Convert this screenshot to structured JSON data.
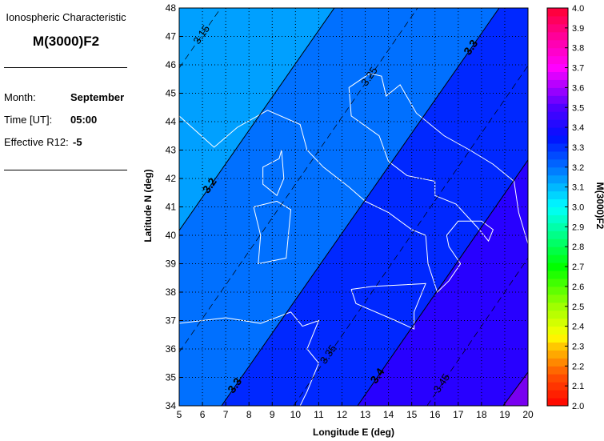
{
  "panel": {
    "subtitle": "Ionospheric Characteristic",
    "title": "M(3000)F2",
    "month_label": "Month:",
    "month_value": "September",
    "time_label": "Time [UT]:",
    "time_value": "05:00",
    "r12_label": "Effective R12:",
    "r12_value": "-5"
  },
  "chart_data": {
    "type": "contour",
    "xlabel": "Longitude E (deg)",
    "ylabel": "Latitude N (deg)",
    "xlim": [
      5,
      20
    ],
    "ylim": [
      34,
      48
    ],
    "xticks": [
      "5",
      "6",
      "7",
      "8",
      "9",
      "10",
      "11",
      "12",
      "13",
      "14",
      "15",
      "16",
      "17",
      "18",
      "19",
      "20"
    ],
    "yticks": [
      "34",
      "35",
      "36",
      "37",
      "38",
      "39",
      "40",
      "41",
      "42",
      "43",
      "44",
      "45",
      "46",
      "47",
      "48"
    ],
    "grid": true,
    "colorbar": {
      "label": "M(3000)F2",
      "range": [
        2.0,
        4.0
      ],
      "ticks": [
        "2.0",
        "2.1",
        "2.2",
        "2.3",
        "2.4",
        "2.5",
        "2.6",
        "2.7",
        "2.8",
        "2.9",
        "3.0",
        "3.1",
        "3.2",
        "3.3",
        "3.4",
        "3.5",
        "3.6",
        "3.7",
        "3.8",
        "3.9",
        "4.0"
      ]
    },
    "bands": [
      {
        "range": [
          3.1,
          3.2
        ],
        "color": "#00a0ff"
      },
      {
        "range": [
          3.2,
          3.3
        ],
        "color": "#0070ff"
      },
      {
        "range": [
          3.3,
          3.4
        ],
        "color": "#0028ff"
      },
      {
        "range": [
          3.4,
          3.5
        ],
        "color": "#2800ff"
      },
      {
        "range": [
          3.5,
          3.6
        ],
        "color": "#7800f0"
      }
    ],
    "contours": [
      {
        "level": "3.15",
        "style": "dashed",
        "points": [
          [
            5,
            45.89
          ],
          [
            6.79,
            48
          ]
        ]
      },
      {
        "level": "3.2",
        "style": "solid",
        "points": [
          [
            5,
            40.17
          ],
          [
            11.67,
            48
          ]
        ]
      },
      {
        "level": "3.25",
        "style": "dashed",
        "points": [
          [
            5,
            35.89
          ],
          [
            15.25,
            48
          ]
        ]
      },
      {
        "level": "3.3",
        "style": "solid",
        "points": [
          [
            6.82,
            34
          ],
          [
            18.76,
            48
          ]
        ]
      },
      {
        "level": "3.35",
        "style": "dashed",
        "points": [
          [
            9.92,
            34
          ],
          [
            20,
            45.97
          ]
        ]
      },
      {
        "level": "3.4",
        "style": "solid",
        "points": [
          [
            12.67,
            34
          ],
          [
            20,
            42.65
          ]
        ]
      },
      {
        "level": "3.45",
        "style": "dashed",
        "points": [
          [
            15.66,
            34
          ],
          [
            20,
            39.2
          ]
        ]
      },
      {
        "level": "3.5",
        "style": "solid",
        "points": [
          [
            18.93,
            34
          ],
          [
            20,
            35.18
          ]
        ]
      }
    ]
  }
}
